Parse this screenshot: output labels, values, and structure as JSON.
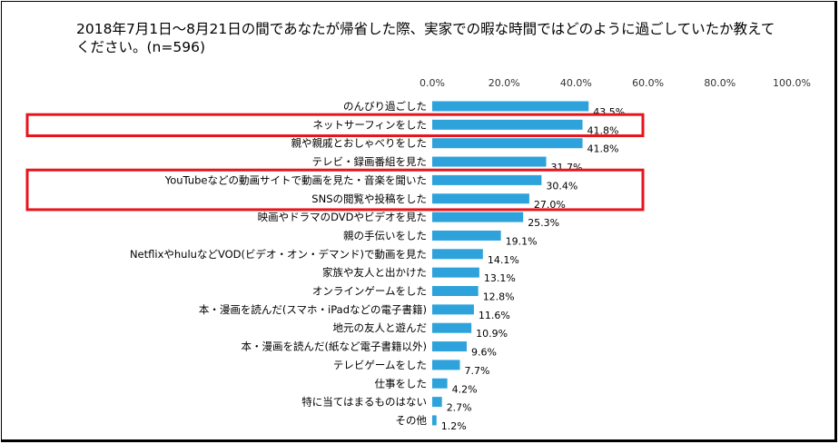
{
  "title": "2018年7月1日〜8月21日の間であなたが帰省した際、実家での暇な時間ではどのように過ごしていたか教えてください。(n=596)",
  "colors": {
    "bar": "#2ea3db",
    "highlight": "#e8141b"
  },
  "chart_data": {
    "type": "bar",
    "orientation": "horizontal",
    "title": "2018年7月1日〜8月21日の間であなたが帰省した際、実家での暇な時間ではどのように過ごしていたか教えてください。(n=596)",
    "xlim": [
      0,
      100
    ],
    "x_ticks": [
      "0.0%",
      "20.0%",
      "40.0%",
      "60.0%",
      "80.0%",
      "100.0%"
    ],
    "grid": false,
    "categories": [
      "のんびり過ごした",
      "ネットサーフィンをした",
      "親や親戚とおしゃべりをした",
      "テレビ・録画番組を見た",
      "YouTubeなどの動画サイトで動画を見た・音楽を聞いた",
      "SNSの閲覧や投稿をした",
      "映画やドラマのDVDやビデオを見た",
      "親の手伝いをした",
      "NetflixやhuluなどVOD(ビデオ・オン・デマンド)で動画を見た",
      "家族や友人と出かけた",
      "オンラインゲームをした",
      "本・漫画を読んだ(スマホ・iPadなどの電子書籍)",
      "地元の友人と遊んだ",
      "本・漫画を読んだ(紙など電子書籍以外)",
      "テレビゲームをした",
      "仕事をした",
      "特に当てはまるものはない",
      "その他"
    ],
    "values": [
      43.5,
      41.8,
      41.8,
      31.7,
      30.4,
      27.0,
      25.3,
      19.1,
      14.1,
      13.1,
      12.8,
      11.6,
      10.9,
      9.6,
      7.7,
      4.2,
      2.7,
      1.2
    ],
    "value_labels": [
      "43.5%",
      "41.8%",
      "41.8%",
      "31.7%",
      "30.4%",
      "27.0%",
      "25.3%",
      "19.1%",
      "14.1%",
      "13.1%",
      "12.8%",
      "11.6%",
      "10.9%",
      "9.6%",
      "7.7%",
      "4.2%",
      "2.7%",
      "1.2%"
    ],
    "highlighted_groups": [
      [
        1
      ],
      [
        4,
        5
      ]
    ]
  }
}
